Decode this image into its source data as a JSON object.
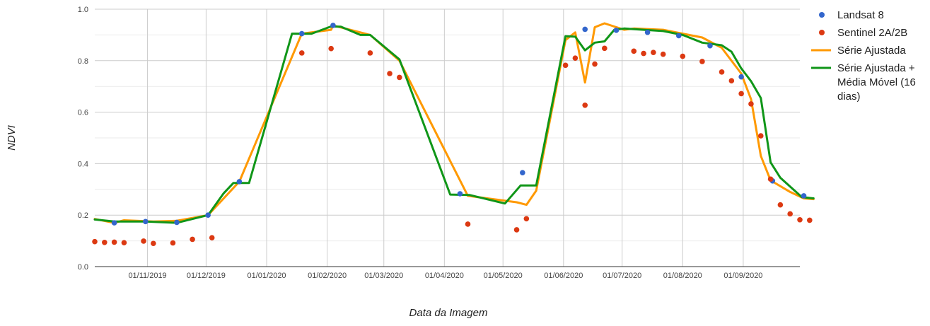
{
  "chart_data": {
    "type": "line",
    "xlabel": "Data da Imagem",
    "ylabel": "NDVI",
    "x_range": [
      "2019-10-05",
      "2020-09-30"
    ],
    "ylim": [
      0,
      1
    ],
    "y_ticks": [
      "0.0",
      "0.2",
      "0.4",
      "0.6",
      "0.8",
      "1.0"
    ],
    "x_ticks": [
      {
        "date": "2019-11-01",
        "label": "01/11/2019"
      },
      {
        "date": "2019-12-01",
        "label": "01/12/2019"
      },
      {
        "date": "2020-01-01",
        "label": "01/01/2020"
      },
      {
        "date": "2020-02-01",
        "label": "01/02/2020"
      },
      {
        "date": "2020-03-01",
        "label": "01/03/2020"
      },
      {
        "date": "2020-04-01",
        "label": "01/04/2020"
      },
      {
        "date": "2020-05-01",
        "label": "01/05/2020"
      },
      {
        "date": "2020-06-01",
        "label": "01/06/2020"
      },
      {
        "date": "2020-07-01",
        "label": "01/07/2020"
      },
      {
        "date": "2020-08-01",
        "label": "01/08/2020"
      },
      {
        "date": "2020-09-01",
        "label": "01/09/2020"
      }
    ],
    "grid": true,
    "legend_position": "right",
    "series": [
      {
        "name": "Landsat 8",
        "kind": "scatter",
        "color": "#3366cc",
        "points": [
          [
            "2019-10-15",
            0.17
          ],
          [
            "2019-10-31",
            0.175
          ],
          [
            "2019-11-16",
            0.172
          ],
          [
            "2019-12-02",
            0.2
          ],
          [
            "2019-12-18",
            0.33
          ],
          [
            "2020-01-19",
            0.905
          ],
          [
            "2020-02-04",
            0.937
          ],
          [
            "2020-04-09",
            0.283
          ],
          [
            "2020-05-11",
            0.365
          ],
          [
            "2020-06-12",
            0.922
          ],
          [
            "2020-06-28",
            0.918
          ],
          [
            "2020-07-14",
            0.91
          ],
          [
            "2020-07-30",
            0.897
          ],
          [
            "2020-08-15",
            0.858
          ],
          [
            "2020-08-31",
            0.737
          ],
          [
            "2020-09-16",
            0.333
          ],
          [
            "2020-10-02",
            0.275
          ]
        ]
      },
      {
        "name": "Sentinel 2A/2B",
        "kind": "scatter",
        "color": "#dc3912",
        "points": [
          [
            "2019-10-05",
            0.097
          ],
          [
            "2019-10-10",
            0.094
          ],
          [
            "2019-10-15",
            0.095
          ],
          [
            "2019-10-20",
            0.093
          ],
          [
            "2019-10-30",
            0.099
          ],
          [
            "2019-11-04",
            0.09
          ],
          [
            "2019-11-14",
            0.092
          ],
          [
            "2019-11-24",
            0.106
          ],
          [
            "2019-12-04",
            0.112
          ],
          [
            "2020-01-19",
            0.83
          ],
          [
            "2020-02-03",
            0.847
          ],
          [
            "2020-02-23",
            0.83
          ],
          [
            "2020-03-04",
            0.75
          ],
          [
            "2020-03-09",
            0.735
          ],
          [
            "2020-04-13",
            0.165
          ],
          [
            "2020-05-08",
            0.143
          ],
          [
            "2020-05-13",
            0.186
          ],
          [
            "2020-06-02",
            0.782
          ],
          [
            "2020-06-07",
            0.81
          ],
          [
            "2020-06-12",
            0.627
          ],
          [
            "2020-06-17",
            0.787
          ],
          [
            "2020-06-22",
            0.848
          ],
          [
            "2020-07-07",
            0.837
          ],
          [
            "2020-07-12",
            0.828
          ],
          [
            "2020-07-17",
            0.832
          ],
          [
            "2020-07-22",
            0.825
          ],
          [
            "2020-08-01",
            0.817
          ],
          [
            "2020-08-11",
            0.797
          ],
          [
            "2020-08-21",
            0.756
          ],
          [
            "2020-08-26",
            0.722
          ],
          [
            "2020-08-31",
            0.672
          ],
          [
            "2020-09-05",
            0.632
          ],
          [
            "2020-09-10",
            0.508
          ],
          [
            "2020-09-15",
            0.34
          ],
          [
            "2020-09-20",
            0.24
          ],
          [
            "2020-09-25",
            0.205
          ],
          [
            "2020-09-30",
            0.182
          ],
          [
            "2020-10-05",
            0.18
          ]
        ]
      },
      {
        "name": "Série Ajustada",
        "kind": "line",
        "color": "#ff9900",
        "points": [
          [
            "2019-10-05",
            0.185
          ],
          [
            "2019-10-15",
            0.17
          ],
          [
            "2019-10-20",
            0.18
          ],
          [
            "2019-11-04",
            0.175
          ],
          [
            "2019-11-16",
            0.178
          ],
          [
            "2019-12-02",
            0.2
          ],
          [
            "2019-12-18",
            0.33
          ],
          [
            "2020-01-19",
            0.905
          ],
          [
            "2020-02-03",
            0.92
          ],
          [
            "2020-02-04",
            0.937
          ],
          [
            "2020-02-23",
            0.9
          ],
          [
            "2020-03-09",
            0.8
          ],
          [
            "2020-04-13",
            0.275
          ],
          [
            "2020-05-08",
            0.25
          ],
          [
            "2020-05-13",
            0.24
          ],
          [
            "2020-05-18",
            0.295
          ],
          [
            "2020-06-02",
            0.88
          ],
          [
            "2020-06-07",
            0.91
          ],
          [
            "2020-06-12",
            0.715
          ],
          [
            "2020-06-17",
            0.93
          ],
          [
            "2020-06-22",
            0.945
          ],
          [
            "2020-07-02",
            0.92
          ],
          [
            "2020-07-07",
            0.925
          ],
          [
            "2020-07-22",
            0.92
          ],
          [
            "2020-08-01",
            0.905
          ],
          [
            "2020-08-11",
            0.89
          ],
          [
            "2020-08-21",
            0.85
          ],
          [
            "2020-08-31",
            0.75
          ],
          [
            "2020-09-05",
            0.65
          ],
          [
            "2020-09-10",
            0.43
          ],
          [
            "2020-09-15",
            0.335
          ],
          [
            "2020-09-25",
            0.29
          ],
          [
            "2020-10-02",
            0.265
          ],
          [
            "2020-10-07",
            0.262
          ]
        ]
      },
      {
        "name": "Série Ajustada + Média Móvel (16 dias)",
        "legend_lines": [
          "Série Ajustada +",
          "Média Móvel (16",
          "dias)"
        ],
        "kind": "line",
        "color": "#109618",
        "points": [
          [
            "2019-10-05",
            0.183
          ],
          [
            "2019-10-15",
            0.175
          ],
          [
            "2019-10-31",
            0.175
          ],
          [
            "2019-11-16",
            0.17
          ],
          [
            "2019-12-02",
            0.2
          ],
          [
            "2019-12-10",
            0.285
          ],
          [
            "2019-12-15",
            0.325
          ],
          [
            "2019-12-23",
            0.325
          ],
          [
            "2020-01-14",
            0.905
          ],
          [
            "2020-01-24",
            0.905
          ],
          [
            "2020-02-03",
            0.933
          ],
          [
            "2020-02-08",
            0.932
          ],
          [
            "2020-02-18",
            0.9
          ],
          [
            "2020-02-23",
            0.9
          ],
          [
            "2020-03-09",
            0.805
          ],
          [
            "2020-04-04",
            0.28
          ],
          [
            "2020-04-14",
            0.278
          ],
          [
            "2020-05-02",
            0.245
          ],
          [
            "2020-05-10",
            0.315
          ],
          [
            "2020-05-18",
            0.315
          ],
          [
            "2020-06-02",
            0.895
          ],
          [
            "2020-06-07",
            0.893
          ],
          [
            "2020-06-12",
            0.84
          ],
          [
            "2020-06-17",
            0.87
          ],
          [
            "2020-06-22",
            0.875
          ],
          [
            "2020-06-27",
            0.92
          ],
          [
            "2020-07-02",
            0.925
          ],
          [
            "2020-07-12",
            0.92
          ],
          [
            "2020-07-22",
            0.915
          ],
          [
            "2020-08-01",
            0.9
          ],
          [
            "2020-08-11",
            0.87
          ],
          [
            "2020-08-21",
            0.86
          ],
          [
            "2020-08-26",
            0.835
          ],
          [
            "2020-08-31",
            0.77
          ],
          [
            "2020-09-05",
            0.72
          ],
          [
            "2020-09-10",
            0.655
          ],
          [
            "2020-09-15",
            0.405
          ],
          [
            "2020-09-20",
            0.345
          ],
          [
            "2020-10-01",
            0.27
          ],
          [
            "2020-10-07",
            0.265
          ]
        ]
      }
    ]
  }
}
